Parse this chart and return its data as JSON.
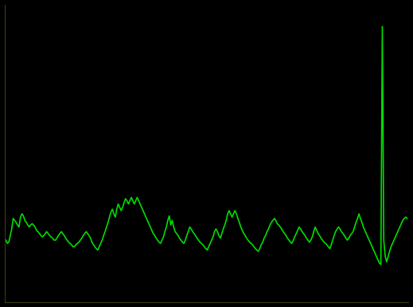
{
  "background_color": "#000000",
  "line_color": "#00dd00",
  "line_width": 1.2,
  "spine_color": "#3a3a10",
  "figsize": [
    5.19,
    3.86
  ],
  "dpi": 100,
  "values": [
    9.5,
    9.0,
    9.2,
    10.2,
    11.2,
    12.8,
    12.5,
    12.2,
    11.8,
    11.5,
    13.0,
    13.5,
    13.2,
    12.5,
    12.2,
    11.8,
    11.5,
    11.8,
    12.0,
    11.8,
    11.5,
    11.0,
    10.8,
    10.5,
    10.2,
    10.0,
    10.2,
    10.5,
    10.8,
    10.5,
    10.2,
    10.0,
    9.8,
    9.5,
    9.5,
    9.8,
    10.2,
    10.5,
    10.8,
    10.5,
    10.2,
    9.8,
    9.5,
    9.2,
    9.0,
    8.8,
    8.5,
    8.5,
    8.8,
    9.0,
    9.2,
    9.5,
    9.8,
    10.2,
    10.5,
    10.8,
    10.5,
    10.2,
    9.8,
    9.2,
    8.8,
    8.5,
    8.2,
    8.0,
    8.5,
    9.0,
    9.5,
    10.2,
    10.8,
    11.5,
    12.2,
    13.0,
    13.8,
    14.2,
    13.5,
    13.0,
    14.2,
    15.0,
    14.5,
    14.0,
    14.5,
    15.2,
    15.8,
    15.5,
    15.0,
    15.5,
    16.0,
    15.5,
    15.0,
    15.5,
    16.0,
    15.5,
    15.0,
    14.5,
    14.0,
    13.5,
    13.0,
    12.5,
    12.0,
    11.5,
    11.0,
    10.5,
    10.2,
    9.8,
    9.5,
    9.2,
    9.0,
    9.5,
    10.0,
    10.8,
    11.5,
    12.5,
    13.2,
    11.8,
    12.5,
    11.5,
    10.8,
    10.5,
    10.2,
    9.8,
    9.5,
    9.2,
    9.0,
    9.5,
    10.2,
    10.8,
    11.5,
    11.2,
    10.8,
    10.5,
    10.2,
    9.8,
    9.5,
    9.2,
    9.0,
    8.8,
    8.5,
    8.2,
    8.0,
    8.5,
    9.0,
    9.5,
    10.0,
    10.8,
    11.2,
    10.8,
    10.2,
    9.8,
    10.5,
    11.2,
    11.8,
    12.5,
    13.5,
    14.0,
    13.5,
    13.0,
    13.5,
    14.0,
    13.5,
    12.8,
    12.2,
    11.5,
    11.0,
    10.5,
    10.2,
    9.8,
    9.5,
    9.2,
    9.0,
    8.8,
    8.5,
    8.2,
    8.0,
    7.8,
    8.2,
    8.8,
    9.2,
    9.8,
    10.2,
    10.8,
    11.2,
    11.8,
    12.2,
    12.5,
    12.8,
    12.5,
    12.0,
    11.8,
    11.5,
    11.2,
    10.8,
    10.5,
    10.2,
    9.8,
    9.5,
    9.2,
    9.0,
    9.5,
    10.0,
    10.5,
    11.0,
    11.5,
    11.2,
    10.8,
    10.5,
    10.2,
    9.8,
    9.5,
    9.2,
    9.5,
    10.0,
    10.8,
    11.5,
    11.0,
    10.5,
    10.2,
    9.8,
    9.5,
    9.2,
    9.0,
    8.8,
    8.5,
    8.2,
    8.8,
    9.5,
    10.2,
    10.8,
    11.2,
    11.5,
    11.2,
    10.8,
    10.5,
    10.2,
    9.8,
    9.5,
    9.8,
    10.2,
    10.5,
    10.8,
    11.5,
    12.2,
    12.8,
    13.5,
    12.8,
    12.2,
    11.5,
    11.0,
    10.5,
    10.0,
    9.5,
    9.0,
    8.5,
    8.0,
    7.5,
    7.0,
    6.5,
    6.0,
    5.8,
    42.0,
    9.5,
    7.0,
    6.2,
    7.0,
    7.8,
    8.5,
    9.0,
    9.5,
    10.0,
    10.5,
    11.0,
    11.5,
    12.0,
    12.5,
    12.8,
    13.0,
    12.8
  ]
}
